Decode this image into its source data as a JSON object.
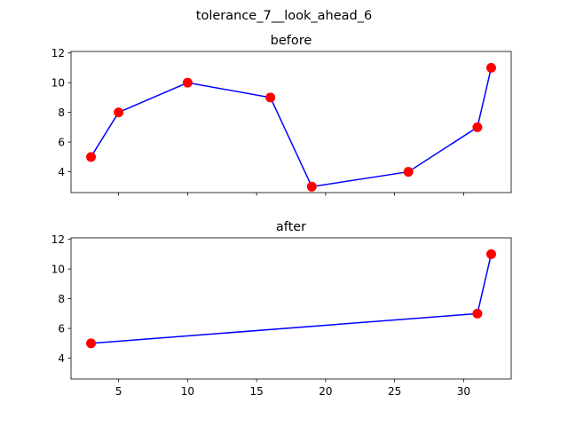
{
  "figure": {
    "suptitle": "tolerance_7__look_ahead_6"
  },
  "chart_data": [
    {
      "type": "line",
      "title": "before",
      "xlabel": "",
      "ylabel": "",
      "xlim": [
        1.55,
        33.45
      ],
      "ylim": [
        2.6,
        12.1
      ],
      "xticks": [
        5,
        10,
        15,
        20,
        25,
        30
      ],
      "xtick_labels_visible": false,
      "yticks": [
        4,
        6,
        8,
        10,
        12
      ],
      "grid": false,
      "line_color": "#0000ff",
      "marker_color": "#ff0000",
      "x": [
        3,
        5,
        10,
        16,
        19,
        26,
        31,
        32
      ],
      "y": [
        5,
        8,
        10,
        9,
        3,
        4,
        7,
        11
      ]
    },
    {
      "type": "line",
      "title": "after",
      "xlabel": "",
      "ylabel": "",
      "xlim": [
        1.55,
        33.45
      ],
      "ylim": [
        2.6,
        12.1
      ],
      "xticks": [
        5,
        10,
        15,
        20,
        25,
        30
      ],
      "xtick_labels_visible": true,
      "yticks": [
        4,
        6,
        8,
        10,
        12
      ],
      "grid": false,
      "line_color": "#0000ff",
      "marker_color": "#ff0000",
      "x": [
        3,
        31,
        32
      ],
      "y": [
        5,
        7,
        11
      ]
    }
  ]
}
